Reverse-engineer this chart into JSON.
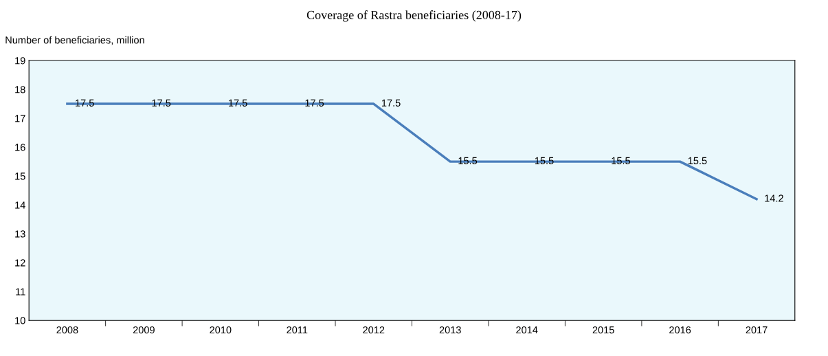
{
  "chart_data": {
    "type": "line",
    "title": "Coverage of Rastra beneficiaries (2008-17)",
    "ylabel": "Number of beneficiaries, million",
    "categories": [
      "2008",
      "2009",
      "2010",
      "2011",
      "2012",
      "2013",
      "2014",
      "2015",
      "2016",
      "2017"
    ],
    "series": [
      {
        "color": "#4a7ebb",
        "values": [
          17.5,
          17.5,
          17.5,
          17.5,
          17.5,
          15.5,
          15.5,
          15.5,
          15.5,
          14.2
        ]
      }
    ],
    "ylim": [
      10,
      19
    ],
    "yticks": [
      10,
      11,
      12,
      13,
      14,
      15,
      16,
      17,
      18,
      19
    ],
    "data_labels": true,
    "grid": false,
    "legend": false,
    "marker": "none",
    "line_style": "solid"
  }
}
